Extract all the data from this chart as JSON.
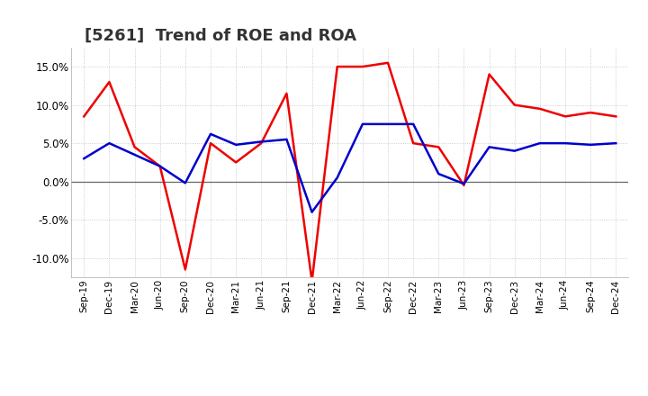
{
  "title": "[5261]  Trend of ROE and ROA",
  "x_labels": [
    "Sep-19",
    "Dec-19",
    "Mar-20",
    "Jun-20",
    "Sep-20",
    "Dec-20",
    "Mar-21",
    "Jun-21",
    "Sep-21",
    "Dec-21",
    "Mar-22",
    "Jun-22",
    "Sep-22",
    "Dec-22",
    "Mar-23",
    "Jun-23",
    "Sep-23",
    "Dec-23",
    "Mar-24",
    "Jun-24",
    "Sep-24",
    "Dec-24"
  ],
  "roe": [
    8.5,
    13.0,
    4.5,
    2.0,
    -11.5,
    5.0,
    2.5,
    5.0,
    11.5,
    -13.0,
    15.0,
    15.0,
    15.5,
    5.0,
    4.5,
    -0.5,
    14.0,
    10.0,
    9.5,
    8.5,
    9.0,
    8.5
  ],
  "roa": [
    3.0,
    5.0,
    3.5,
    2.0,
    -0.2,
    6.2,
    4.8,
    5.2,
    5.5,
    -4.0,
    0.5,
    7.5,
    7.5,
    7.5,
    1.0,
    -0.3,
    4.5,
    4.0,
    5.0,
    5.0,
    4.8,
    5.0
  ],
  "roe_color": "#ee0000",
  "roa_color": "#0000cc",
  "background_color": "#ffffff",
  "grid_color": "#aaaaaa",
  "ylim": [
    -12.5,
    17.5
  ],
  "yticks": [
    -10.0,
    -5.0,
    0.0,
    5.0,
    10.0,
    15.0
  ],
  "linewidth": 1.8,
  "title_fontsize": 13
}
